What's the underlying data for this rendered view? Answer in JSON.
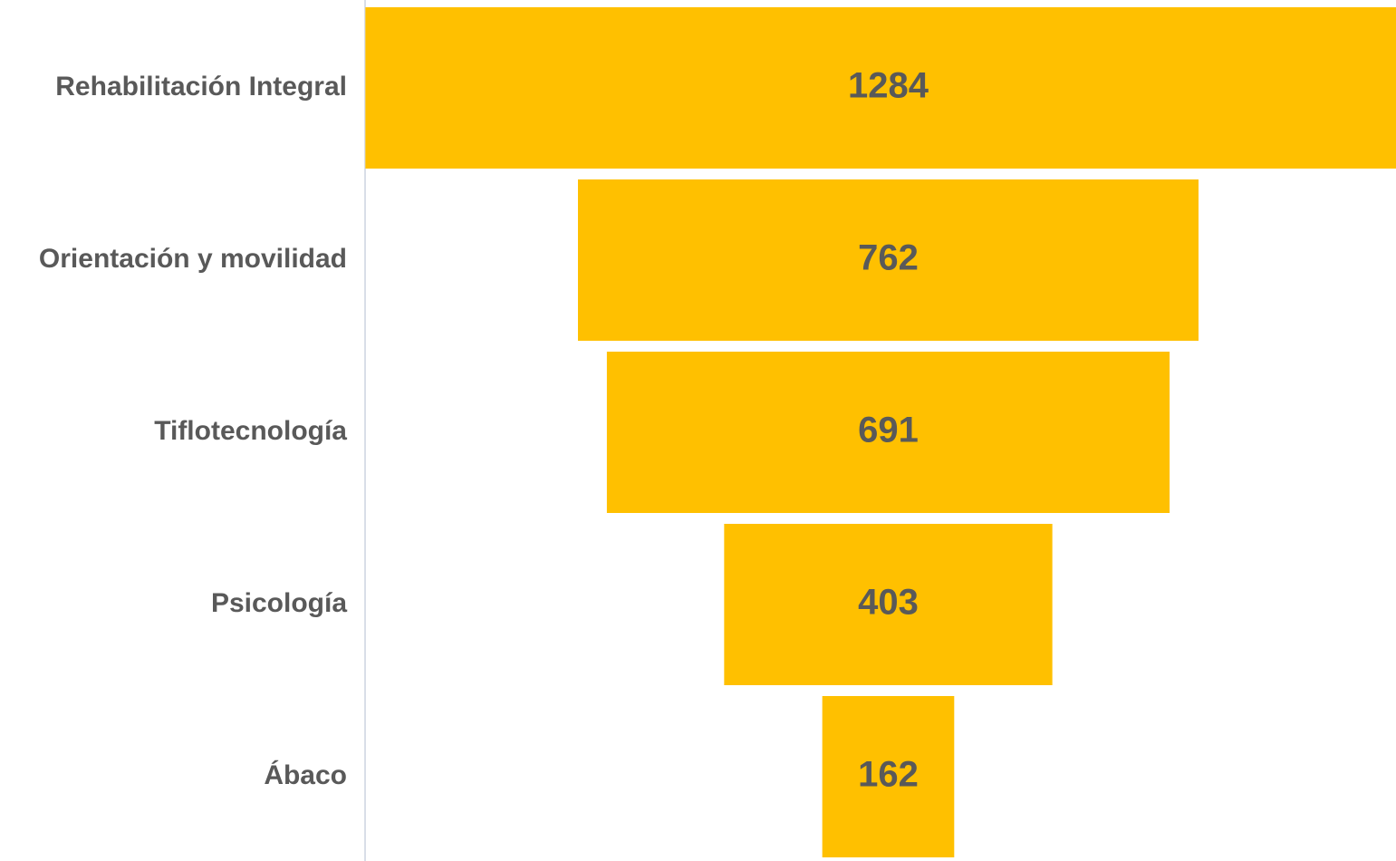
{
  "chart_data": {
    "type": "funnel",
    "categories": [
      "Rehabilitación Integral",
      "Orientación y movilidad",
      "Tiflotecnología",
      "Psicología",
      "Ábaco"
    ],
    "values": [
      1284,
      762,
      691,
      403,
      162
    ],
    "color": "#FFC000"
  }
}
